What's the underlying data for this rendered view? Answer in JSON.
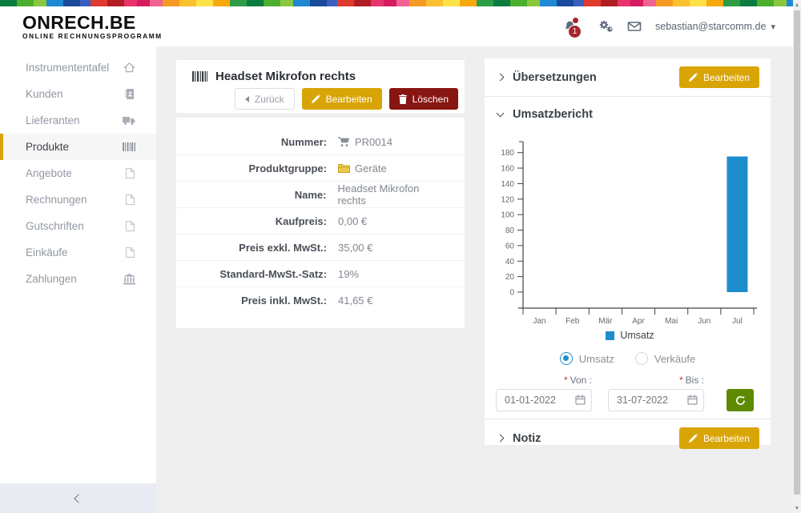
{
  "header": {
    "logo_title": "ONRECH.BE",
    "logo_subtitle": "ONLINE RECHNUNGSPROGRAMM",
    "notification_count": "1",
    "user_email": "sebastian@starcomm.de"
  },
  "sidebar": {
    "items": [
      {
        "label": "Instrumententafel",
        "icon": "home-icon"
      },
      {
        "label": "Kunden",
        "icon": "address-book-icon"
      },
      {
        "label": "Lieferanten",
        "icon": "truck-icon"
      },
      {
        "label": "Produkte",
        "icon": "barcode-icon",
        "active": true
      },
      {
        "label": "Angebote",
        "icon": "file-icon"
      },
      {
        "label": "Rechnungen",
        "icon": "file-icon"
      },
      {
        "label": "Gutschriften",
        "icon": "file-icon"
      },
      {
        "label": "Einkäufe",
        "icon": "file-icon"
      },
      {
        "label": "Zahlungen",
        "icon": "bank-icon"
      }
    ]
  },
  "product": {
    "title": "Headset Mikrofon rechts",
    "buttons": {
      "back": "Zurück",
      "edit": "Bearbeiten",
      "delete": "Löschen"
    },
    "fields": [
      {
        "label": "Nummer:",
        "value": "PR0014",
        "icon": "cart-icon"
      },
      {
        "label": "Produktgruppe:",
        "value": "Geräte",
        "icon": "folder-icon"
      },
      {
        "label": "Name:",
        "value": "Headset Mikrofon rechts"
      },
      {
        "label": "Kaufpreis:",
        "value": "0,00 €"
      },
      {
        "label": "Preis exkl. MwSt.:",
        "value": "35,00 €"
      },
      {
        "label": "Standard-MwSt.-Satz:",
        "value": "19%"
      },
      {
        "label": "Preis inkl. MwSt.:",
        "value": "41,65 €"
      }
    ]
  },
  "panels": {
    "translations": {
      "title": "Übersetzungen",
      "edit_label": "Bearbeiten"
    },
    "sales_report": {
      "title": "Umsatzbericht",
      "radio_options": [
        {
          "label": "Umsatz",
          "selected": true
        },
        {
          "label": "Verkäufe",
          "selected": false
        }
      ],
      "required_marker": "*",
      "from_label": "Von :",
      "to_label": "Bis :",
      "from_value": "01-01-2022",
      "to_value": "31-07-2022"
    },
    "note": {
      "title": "Notiz",
      "edit_label": "Bearbeiten"
    }
  },
  "chart_data": {
    "type": "bar",
    "categories": [
      "Jan",
      "Feb",
      "Mär",
      "Apr",
      "Mai",
      "Jun",
      "Jul"
    ],
    "series": [
      {
        "name": "Umsatz",
        "values": [
          0,
          0,
          0,
          0,
          0,
          0,
          175
        ]
      }
    ],
    "yticks": [
      0,
      20,
      40,
      60,
      80,
      100,
      120,
      140,
      160,
      180
    ],
    "ylim": [
      0,
      190
    ],
    "legend": [
      "Umsatz"
    ],
    "legend_position": "bottom",
    "grid": false,
    "bar_color": "#1d8dce"
  },
  "colors": {
    "accent_gold": "#d9a406",
    "delete_red": "#871511",
    "refresh_green": "#5d8b00",
    "bar_blue": "#1d8dce",
    "badge_red": "#a6252f"
  }
}
